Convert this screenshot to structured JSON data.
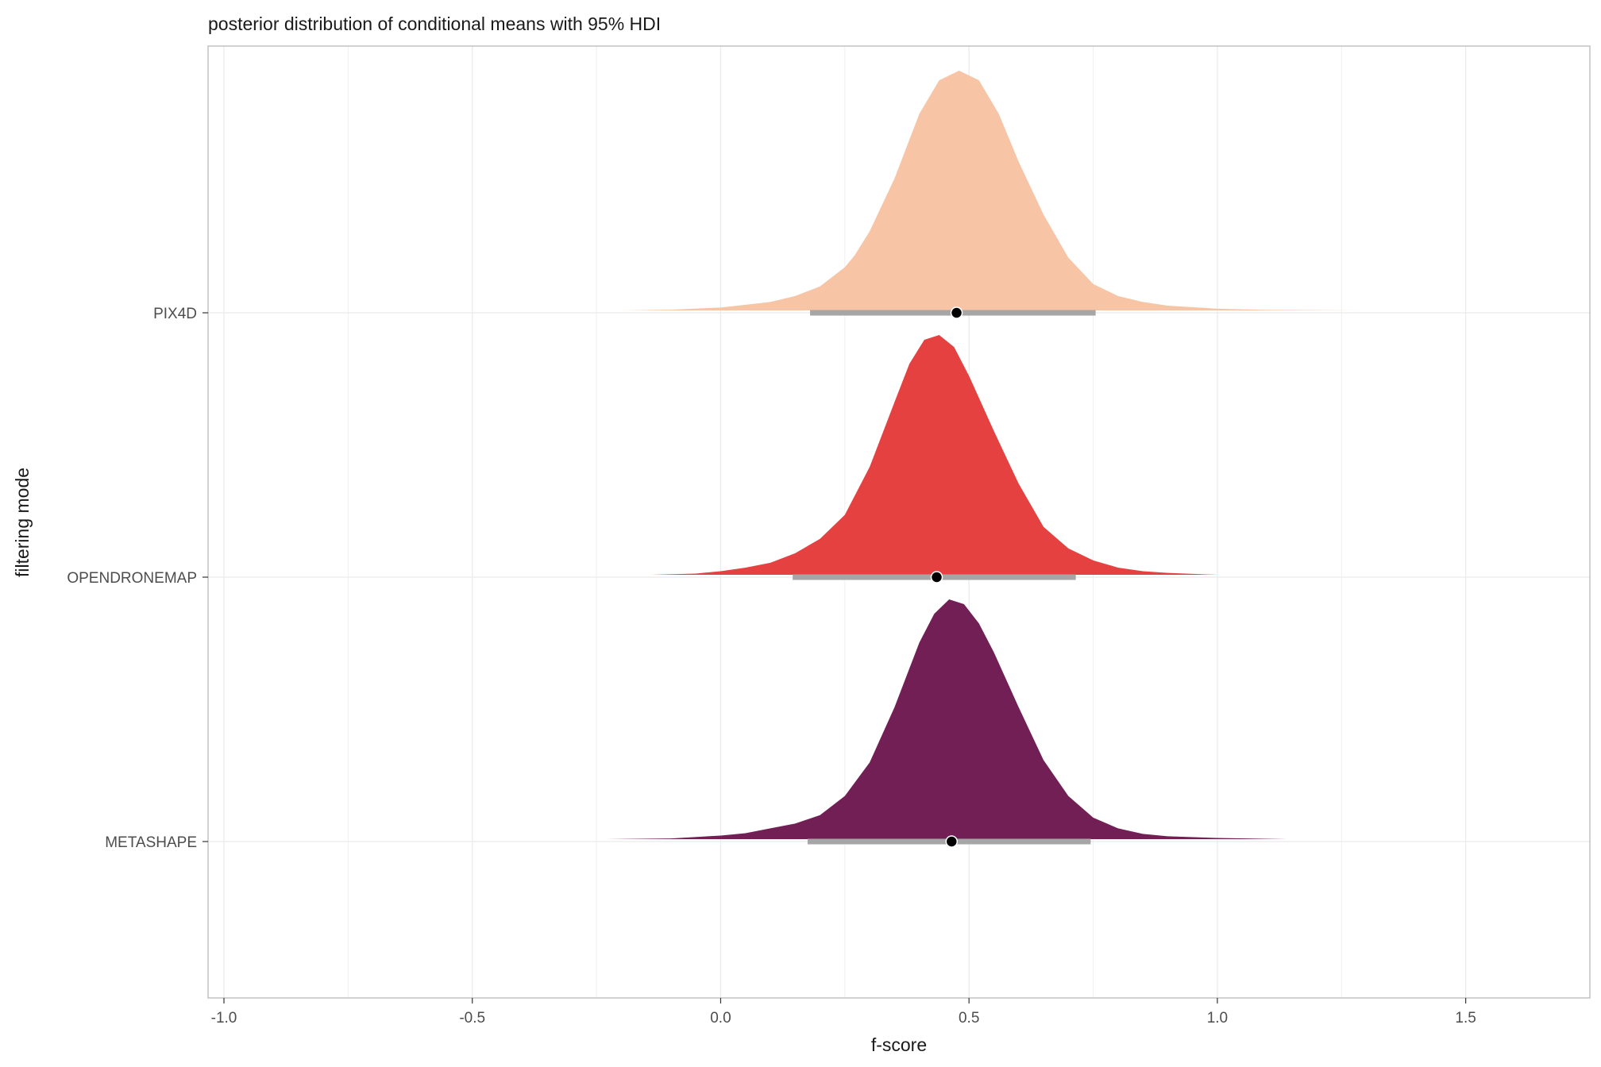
{
  "chart_data": {
    "type": "ridgeline",
    "title": "posterior distribution of conditional means with 95% HDI",
    "xlabel": "f-score",
    "ylabel": "filtering mode",
    "xlim": [
      -1.0,
      1.75
    ],
    "x_ticks": [
      -1.0,
      -0.5,
      0.0,
      0.5,
      1.0,
      1.5
    ],
    "x_tick_labels": [
      "-1.0",
      "-0.5",
      "0.0",
      "0.5",
      "1.0",
      "1.5"
    ],
    "grid": true,
    "categories": [
      "PIX4D",
      "OPENDRONEMAP",
      "METASHAPE"
    ],
    "series": [
      {
        "name": "PIX4D",
        "color": "#f7c4a5",
        "density": [
          [
            -0.4,
            0.0
          ],
          [
            -0.2,
            0.0
          ],
          [
            -0.1,
            0.003
          ],
          [
            0.0,
            0.012
          ],
          [
            0.1,
            0.035
          ],
          [
            0.15,
            0.06
          ],
          [
            0.2,
            0.1
          ],
          [
            0.25,
            0.18
          ],
          [
            0.27,
            0.23
          ],
          [
            0.3,
            0.33
          ],
          [
            0.35,
            0.55
          ],
          [
            0.4,
            0.82
          ],
          [
            0.44,
            0.96
          ],
          [
            0.48,
            1.0
          ],
          [
            0.52,
            0.96
          ],
          [
            0.56,
            0.82
          ],
          [
            0.6,
            0.62
          ],
          [
            0.65,
            0.4
          ],
          [
            0.7,
            0.22
          ],
          [
            0.75,
            0.11
          ],
          [
            0.8,
            0.06
          ],
          [
            0.85,
            0.035
          ],
          [
            0.9,
            0.02
          ],
          [
            1.0,
            0.007
          ],
          [
            1.1,
            0.002
          ],
          [
            1.29,
            0.0
          ]
        ],
        "mean": 0.475,
        "hdi": [
          0.18,
          0.755
        ]
      },
      {
        "name": "OPENDRONEMAP",
        "color": "#e54140",
        "density": [
          [
            -0.14,
            0.0
          ],
          [
            -0.05,
            0.005
          ],
          [
            0.0,
            0.015
          ],
          [
            0.05,
            0.03
          ],
          [
            0.1,
            0.05
          ],
          [
            0.15,
            0.09
          ],
          [
            0.2,
            0.15
          ],
          [
            0.25,
            0.25
          ],
          [
            0.3,
            0.45
          ],
          [
            0.35,
            0.72
          ],
          [
            0.38,
            0.88
          ],
          [
            0.41,
            0.98
          ],
          [
            0.44,
            1.0
          ],
          [
            0.47,
            0.95
          ],
          [
            0.5,
            0.83
          ],
          [
            0.55,
            0.6
          ],
          [
            0.6,
            0.38
          ],
          [
            0.65,
            0.2
          ],
          [
            0.7,
            0.11
          ],
          [
            0.75,
            0.06
          ],
          [
            0.8,
            0.03
          ],
          [
            0.85,
            0.015
          ],
          [
            0.9,
            0.008
          ],
          [
            1.0,
            0.0
          ]
        ],
        "mean": 0.435,
        "hdi": [
          0.145,
          0.715
        ]
      },
      {
        "name": "METASHAPE",
        "color": "#721f56",
        "density": [
          [
            -0.23,
            0.0
          ],
          [
            -0.1,
            0.003
          ],
          [
            0.0,
            0.015
          ],
          [
            0.05,
            0.025
          ],
          [
            0.1,
            0.045
          ],
          [
            0.15,
            0.065
          ],
          [
            0.2,
            0.1
          ],
          [
            0.25,
            0.18
          ],
          [
            0.3,
            0.32
          ],
          [
            0.35,
            0.55
          ],
          [
            0.4,
            0.82
          ],
          [
            0.43,
            0.94
          ],
          [
            0.46,
            1.0
          ],
          [
            0.49,
            0.98
          ],
          [
            0.52,
            0.9
          ],
          [
            0.55,
            0.78
          ],
          [
            0.6,
            0.55
          ],
          [
            0.65,
            0.33
          ],
          [
            0.7,
            0.18
          ],
          [
            0.75,
            0.09
          ],
          [
            0.8,
            0.045
          ],
          [
            0.85,
            0.022
          ],
          [
            0.9,
            0.012
          ],
          [
            1.0,
            0.005
          ],
          [
            1.14,
            0.0
          ]
        ],
        "mean": 0.465,
        "hdi": [
          0.175,
          0.745
        ]
      }
    ],
    "interval_color": "#a6a6a6",
    "point_color": "#000000"
  }
}
